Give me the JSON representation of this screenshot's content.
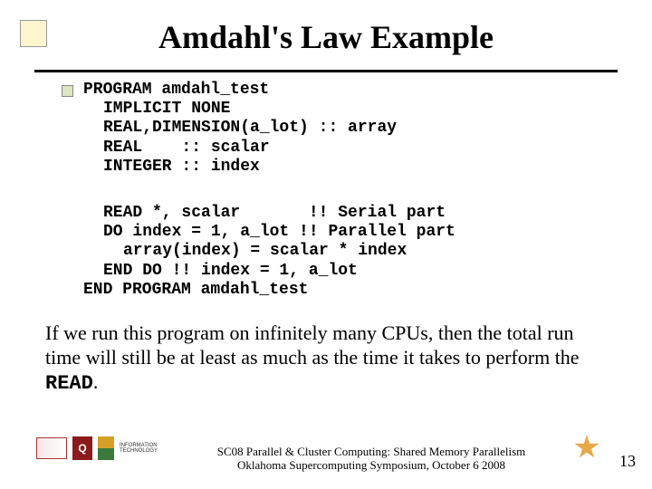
{
  "title": "Amdahl's Law Example",
  "code": {
    "l1": "PROGRAM amdahl_test",
    "l2": "IMPLICIT NONE",
    "l3": "REAL,DIMENSION(a_lot) :: array",
    "l4": "REAL    :: scalar",
    "l5": "INTEGER :: index",
    "l6": "READ *, scalar       !! Serial part",
    "l7": "DO index = 1, a_lot !! Parallel part",
    "l8": "array(index) = scalar * index",
    "l9": "END DO !! index = 1, a_lot",
    "l10": "END PROGRAM amdahl_test"
  },
  "body": {
    "part1": "If we run this program on infinitely many CPUs, then the total run time will still be at least as much as the time it takes to perform the ",
    "readWord": "READ",
    "period": "."
  },
  "footer": {
    "line1": "SC08 Parallel & Cluster Computing: Shared Memory Parallelism",
    "line2": "Oklahoma Supercomputing Symposium, October 6 2008"
  },
  "pageNumber": "13",
  "logo": {
    "ou": "Q"
  }
}
